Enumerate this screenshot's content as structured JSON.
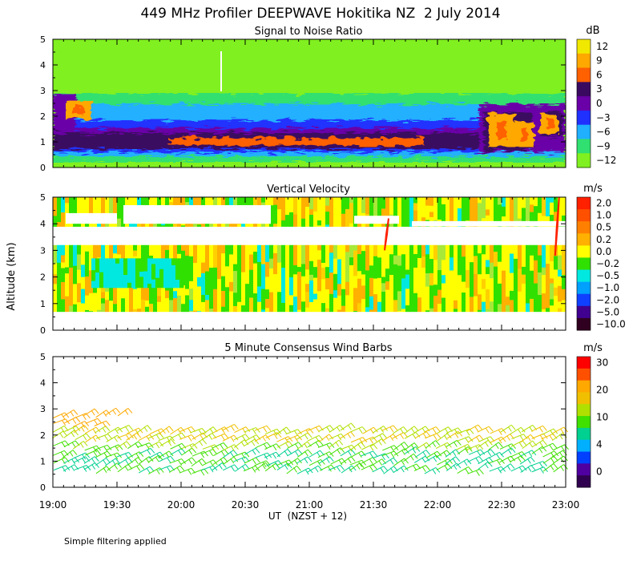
{
  "chart_data": {
    "title": "449 MHz Profiler DEEPWAVE Hokitika NZ  2 July 2014",
    "ylabel": "Altitude (km)",
    "xlabel": "UT  (NZST + 12)",
    "footnote": "Simple filtering applied",
    "x_ticks": [
      "19:00",
      "19:30",
      "20:00",
      "20:30",
      "21:00",
      "21:30",
      "22:00",
      "22:30",
      "23:00"
    ],
    "y_ticks": [
      "0",
      "1",
      "2",
      "3",
      "4",
      "5"
    ],
    "xlim_hours": [
      19,
      23
    ],
    "ylim_km": [
      0,
      5
    ],
    "panels": [
      {
        "type": "heatmap",
        "title": "Signal to Noise Ratio",
        "unit": "dB",
        "colorbar_labels": [
          "12",
          "9",
          "6",
          "3",
          "0",
          "−3",
          "−6",
          "−9",
          "−12"
        ],
        "colors": [
          "#f0e800",
          "#ffa800",
          "#ff6000",
          "#3a0a60",
          "#6a00a8",
          "#2030ff",
          "#20b0ff",
          "#30e070",
          "#80f020"
        ],
        "layers": [
          {
            "y": [
              0.0,
              0.3
            ],
            "value": "-12"
          },
          {
            "y": [
              0.3,
              0.6
            ],
            "value": "-6"
          },
          {
            "y": [
              0.6,
              1.0
            ],
            "value": "3"
          },
          {
            "y": [
              1.0,
              1.5
            ],
            "value": "0"
          },
          {
            "y": [
              1.5,
              2.0
            ],
            "value": "-3"
          },
          {
            "y": [
              2.0,
              2.4
            ],
            "value": "-6"
          },
          {
            "y": [
              2.4,
              3.2
            ],
            "value": "-9"
          },
          {
            "y": [
              3.2,
              5.0
            ],
            "value": "-12"
          }
        ],
        "features": [
          {
            "x": [
              19.1,
              19.3
            ],
            "y": [
              1.9,
              2.6
            ],
            "value": "9"
          },
          {
            "x": [
              22.4,
              22.6
            ],
            "y": [
              0.8,
              2.1
            ],
            "value": "9"
          },
          {
            "x": [
              22.6,
              22.75
            ],
            "y": [
              0.8,
              1.8
            ],
            "value": "9"
          },
          {
            "x": [
              22.8,
              22.95
            ],
            "y": [
              1.3,
              2.1
            ],
            "value": "9"
          },
          {
            "x": [
              19.9,
              21.9
            ],
            "y": [
              0.85,
              1.15
            ],
            "value": "6"
          }
        ]
      },
      {
        "type": "heatmap",
        "title": "Vertical Velocity",
        "unit": "m/s",
        "colorbar_labels": [
          "2.0",
          "1.0",
          "0.5",
          "0.2",
          "0.0",
          "−0.2",
          "−0.5",
          "−1.0",
          "−2.0",
          "−5.0",
          "−10.0"
        ],
        "colors": [
          "#ff2000",
          "#ff5000",
          "#ff8000",
          "#ffb000",
          "#ffff00",
          "#30e000",
          "#00e8e0",
          "#00a0ff",
          "#1040ff",
          "#400090",
          "#300020"
        ],
        "regions": [
          {
            "x": [
              19.0,
              23.0
            ],
            "y": [
              0.7,
              3.2
            ],
            "value": "0.0 / -0.2 mix"
          },
          {
            "x": [
              19.0,
              23.0
            ],
            "y": [
              3.9,
              5.0
            ],
            "value": "0.0 / -0.2 mix"
          },
          {
            "x": [
              19.3,
              20.0
            ],
            "y": [
              1.6,
              2.7
            ],
            "value": "-0.5"
          }
        ],
        "spikes": [
          {
            "x": 21.6,
            "y": [
              3.0,
              4.2
            ],
            "value": "2.0"
          },
          {
            "x": 22.93,
            "y": [
              2.8,
              5.0
            ],
            "value": "2.0"
          }
        ]
      },
      {
        "type": "wind_barbs",
        "title": "5 Minute Consensus Wind Barbs",
        "unit": "m/s",
        "colorbar_labels": [
          "30",
          "20",
          "10",
          "4",
          "0"
        ],
        "colors": [
          "#ff0000",
          "#ff5000",
          "#ffa800",
          "#f0c000",
          "#b0e000",
          "#40e000",
          "#00d090",
          "#00b0ff",
          "#0040ff",
          "#5000a0",
          "#300050"
        ],
        "x_range": [
          19.0,
          22.95
        ],
        "heights_km": [
          0.6,
          0.9,
          1.2,
          1.5,
          1.8,
          2.1,
          2.4,
          2.7
        ],
        "speed_note": "lower levels ~8-12 m/s, upper levels ~15-20 m/s"
      }
    ]
  }
}
